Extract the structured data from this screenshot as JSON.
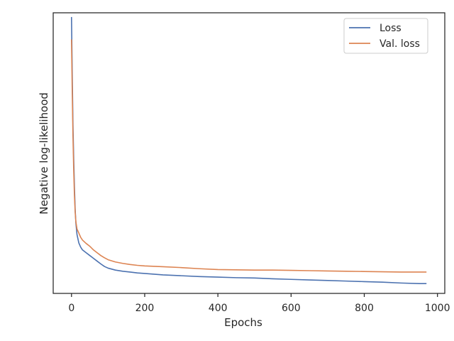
{
  "chart_data": {
    "type": "line",
    "title": "",
    "xlabel": "Epochs",
    "ylabel": "Negative log-likelihood",
    "xlim": [
      -50,
      1020
    ],
    "xticks": [
      0,
      200,
      400,
      600,
      800,
      1000
    ],
    "ylim": [
      0,
      1
    ],
    "yticks_shown": false,
    "grid": false,
    "legend_position": "top-right",
    "series": [
      {
        "name": "Loss",
        "color": "#4c72b0",
        "x": [
          0,
          2,
          4,
          6,
          8,
          10,
          12,
          15,
          20,
          25,
          30,
          40,
          50,
          60,
          70,
          80,
          90,
          100,
          120,
          140,
          160,
          180,
          200,
          250,
          300,
          350,
          400,
          450,
          500,
          550,
          600,
          650,
          700,
          750,
          800,
          850,
          900,
          950,
          970
        ],
        "y": [
          0.985,
          0.78,
          0.6,
          0.48,
          0.38,
          0.3,
          0.25,
          0.21,
          0.18,
          0.165,
          0.155,
          0.145,
          0.135,
          0.125,
          0.115,
          0.105,
          0.096,
          0.09,
          0.083,
          0.079,
          0.076,
          0.073,
          0.071,
          0.066,
          0.063,
          0.06,
          0.058,
          0.056,
          0.055,
          0.052,
          0.05,
          0.048,
          0.046,
          0.044,
          0.042,
          0.04,
          0.037,
          0.035,
          0.035
        ]
      },
      {
        "name": "Val. loss",
        "color": "#dd8452",
        "x": [
          0,
          2,
          4,
          6,
          8,
          10,
          12,
          15,
          20,
          25,
          30,
          40,
          50,
          60,
          70,
          80,
          90,
          100,
          120,
          140,
          160,
          180,
          200,
          250,
          300,
          350,
          400,
          450,
          500,
          550,
          600,
          650,
          700,
          750,
          800,
          850,
          900,
          950,
          970
        ],
        "y": [
          0.905,
          0.72,
          0.56,
          0.44,
          0.35,
          0.29,
          0.255,
          0.23,
          0.215,
          0.2,
          0.19,
          0.178,
          0.168,
          0.155,
          0.145,
          0.135,
          0.127,
          0.12,
          0.112,
          0.107,
          0.103,
          0.1,
          0.098,
          0.095,
          0.092,
          0.088,
          0.085,
          0.084,
          0.083,
          0.083,
          0.082,
          0.081,
          0.08,
          0.079,
          0.078,
          0.077,
          0.076,
          0.076,
          0.076
        ]
      }
    ]
  }
}
